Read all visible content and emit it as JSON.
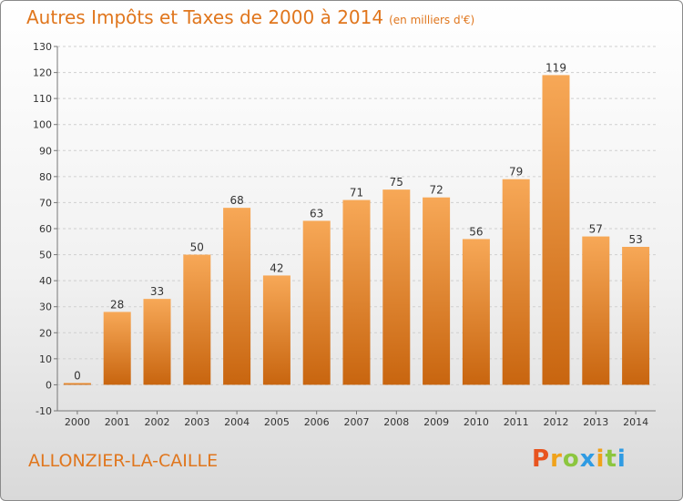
{
  "title": "Autres Impôts et Taxes de 2000 à 2014",
  "unit": "(en milliers d'€)",
  "commune": "ALLONZIER-LA-CAILLE",
  "brand": {
    "letters": [
      "P",
      "r",
      "o",
      "x",
      "i",
      "t",
      "i"
    ],
    "colors": [
      "#e8541f",
      "#f0a21a",
      "#8cc63f",
      "#2f9be3",
      "#f0a21a",
      "#8cc63f",
      "#2f9be3"
    ]
  },
  "colors": {
    "bar_light": "#f7a857",
    "bar_dark": "#c8650f",
    "title": "#e0761d"
  },
  "chart_data": {
    "type": "bar",
    "categories": [
      "2000",
      "2001",
      "2002",
      "2003",
      "2004",
      "2005",
      "2006",
      "2007",
      "2008",
      "2009",
      "2010",
      "2011",
      "2012",
      "2013",
      "2014"
    ],
    "values": [
      0,
      28,
      33,
      50,
      68,
      42,
      63,
      71,
      75,
      72,
      56,
      79,
      119,
      57,
      53
    ],
    "labels": [
      "0",
      "28",
      "33",
      "50",
      "68",
      "42",
      "63",
      "71",
      "75",
      "72",
      "56",
      "79",
      "119",
      "57",
      "53"
    ],
    "title": "Autres Impôts et Taxes de 2000 à 2014",
    "xlabel": "",
    "ylabel": "",
    "ylim": [
      -10,
      130
    ],
    "yticks": [
      -10,
      0,
      10,
      20,
      30,
      40,
      50,
      60,
      70,
      80,
      90,
      100,
      110,
      120,
      130
    ],
    "ytick_labels": [
      "-10",
      "0",
      "10",
      "20",
      "30",
      "40",
      "50",
      "60",
      "70",
      "80",
      "90",
      "100",
      "110",
      "120",
      "130"
    ],
    "grid": true,
    "legend": "none"
  }
}
